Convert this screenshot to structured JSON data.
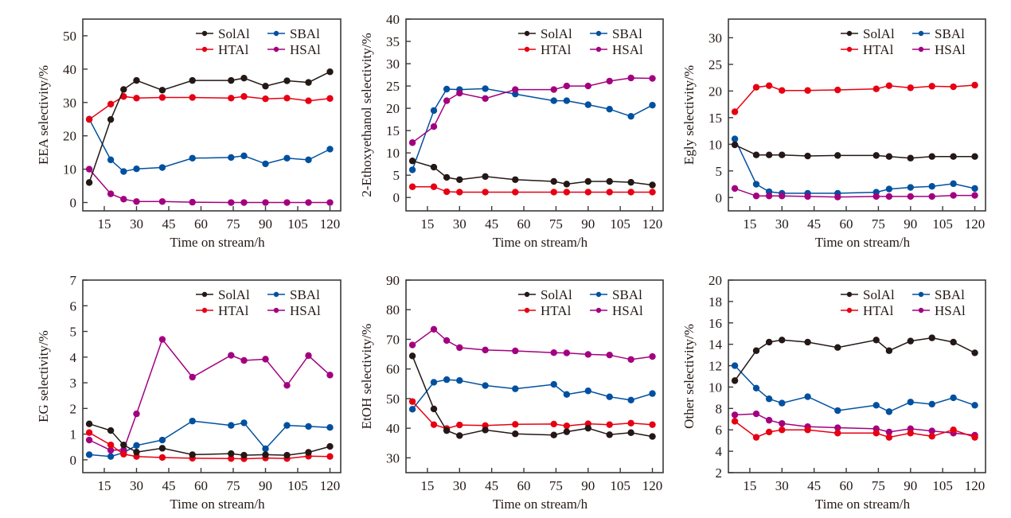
{
  "figure": {
    "legend_position": "top-right",
    "series_style": {
      "SolAl": "#231815",
      "HTAl": "#e60012",
      "SBAl": "#0050a0",
      "HSAl": "#a3007f"
    }
  },
  "chart_data": [
    {
      "type": "line",
      "title": "",
      "xlabel": "Time on stream/h",
      "ylabel": "EEA selectivity/%",
      "xlim": [
        5,
        125
      ],
      "ylim": [
        -2.5,
        55
      ],
      "xticks": [
        15,
        30,
        45,
        60,
        75,
        90,
        105,
        120
      ],
      "yticks": [
        0,
        10,
        20,
        30,
        40,
        50
      ],
      "grid": false,
      "legend": [
        "SolAl",
        "SBAl",
        "HTAl",
        "HSAl"
      ],
      "x": [
        8,
        18,
        24,
        30,
        42,
        56,
        74,
        80,
        90,
        100,
        110,
        120
      ],
      "series": [
        {
          "name": "SolAl",
          "values": [
            6.0,
            24.9,
            33.9,
            36.6,
            33.7,
            36.6,
            36.6,
            37.3,
            34.9,
            36.5,
            36.0,
            39.2
          ]
        },
        {
          "name": "HTAl",
          "values": [
            24.9,
            29.5,
            31.8,
            31.3,
            31.5,
            31.5,
            31.3,
            31.8,
            31.1,
            31.3,
            30.5,
            31.2
          ]
        },
        {
          "name": "SBAl",
          "values": [
            25.0,
            12.8,
            9.3,
            10.1,
            10.5,
            13.3,
            13.5,
            14.0,
            11.6,
            13.3,
            12.8,
            16.0
          ]
        },
        {
          "name": "HSAl",
          "values": [
            10.0,
            2.6,
            1.0,
            0.3,
            0.3,
            0.1,
            0.0,
            0.0,
            0.0,
            0.0,
            0.0,
            0.0
          ]
        }
      ]
    },
    {
      "type": "line",
      "title": "",
      "xlabel": "Time on stream/h",
      "ylabel": "2-Ethoxyethanol selectivity/%",
      "xlim": [
        5,
        125
      ],
      "ylim": [
        -3,
        40
      ],
      "xticks": [
        15,
        30,
        45,
        60,
        75,
        90,
        105,
        120
      ],
      "yticks": [
        0,
        5,
        10,
        15,
        20,
        25,
        30,
        35,
        40
      ],
      "grid": false,
      "legend": [
        "SolAl",
        "SBAl",
        "HTAl",
        "HSAl"
      ],
      "x": [
        8,
        18,
        24,
        30,
        42,
        56,
        74,
        80,
        90,
        100,
        110,
        120
      ],
      "series": [
        {
          "name": "SolAl",
          "values": [
            8.2,
            6.8,
            4.5,
            4.0,
            4.7,
            4.0,
            3.6,
            3.0,
            3.6,
            3.6,
            3.4,
            2.8
          ]
        },
        {
          "name": "HTAl",
          "values": [
            2.4,
            2.4,
            1.3,
            1.2,
            1.2,
            1.2,
            1.2,
            1.2,
            1.2,
            1.2,
            1.2,
            1.2
          ]
        },
        {
          "name": "SBAl",
          "values": [
            6.2,
            19.5,
            24.3,
            24.2,
            24.4,
            23.2,
            21.7,
            21.7,
            20.8,
            19.8,
            18.2,
            20.7
          ]
        },
        {
          "name": "HSAl",
          "values": [
            12.3,
            15.9,
            21.7,
            23.4,
            22.2,
            24.2,
            24.2,
            25.0,
            25.0,
            26.1,
            26.8,
            26.7
          ]
        }
      ]
    },
    {
      "type": "line",
      "title": "",
      "xlabel": "Time on stream/h",
      "ylabel": "Egly selectivity/%",
      "xlim": [
        5,
        125
      ],
      "ylim": [
        -2.5,
        33.5
      ],
      "xticks": [
        15,
        30,
        45,
        60,
        75,
        90,
        105,
        120
      ],
      "yticks": [
        0,
        5,
        10,
        15,
        20,
        25,
        30
      ],
      "grid": false,
      "legend": [
        "SolAl",
        "SBAl",
        "HTAl",
        "HSAl"
      ],
      "x": [
        8,
        18,
        24,
        30,
        42,
        56,
        74,
        80,
        90,
        100,
        110,
        120
      ],
      "series": [
        {
          "name": "SolAl",
          "values": [
            9.9,
            8.0,
            8.0,
            8.0,
            7.8,
            7.9,
            7.9,
            7.7,
            7.4,
            7.7,
            7.7,
            7.7
          ]
        },
        {
          "name": "HTAl",
          "values": [
            16.1,
            20.7,
            21.0,
            20.1,
            20.1,
            20.2,
            20.4,
            21.0,
            20.6,
            20.9,
            20.8,
            21.1
          ]
        },
        {
          "name": "SBAl",
          "values": [
            11.0,
            2.5,
            1.1,
            0.8,
            0.8,
            0.8,
            1.0,
            1.6,
            1.9,
            2.1,
            2.6,
            1.7
          ]
        },
        {
          "name": "HSAl",
          "values": [
            1.7,
            0.3,
            0.3,
            0.3,
            0.2,
            0.1,
            0.2,
            0.2,
            0.2,
            0.2,
            0.4,
            0.4
          ]
        }
      ]
    },
    {
      "type": "line",
      "title": "",
      "xlabel": "Time on stream/h",
      "ylabel": "EG selectivity/%",
      "xlim": [
        5,
        125
      ],
      "ylim": [
        -0.5,
        7
      ],
      "xticks": [
        15,
        30,
        45,
        60,
        75,
        90,
        105,
        120
      ],
      "yticks": [
        0,
        1,
        2,
        3,
        4,
        5,
        6,
        7
      ],
      "grid": false,
      "legend": [
        "SolAl",
        "SBAl",
        "HTAl",
        "HSAl"
      ],
      "x": [
        8,
        18,
        24,
        30,
        42,
        56,
        74,
        80,
        90,
        100,
        110,
        120
      ],
      "series": [
        {
          "name": "SolAl",
          "values": [
            1.4,
            1.14,
            0.58,
            0.3,
            0.45,
            0.2,
            0.24,
            0.18,
            0.2,
            0.18,
            0.29,
            0.52
          ]
        },
        {
          "name": "HTAl",
          "values": [
            1.06,
            0.58,
            0.22,
            0.13,
            0.09,
            0.06,
            0.05,
            0.04,
            0.07,
            0.05,
            0.14,
            0.13
          ]
        },
        {
          "name": "SBAl",
          "values": [
            0.2,
            0.13,
            0.28,
            0.56,
            0.77,
            1.51,
            1.34,
            1.44,
            0.43,
            1.34,
            1.3,
            1.26
          ]
        },
        {
          "name": "HSAl",
          "values": [
            0.77,
            0.37,
            0.39,
            1.79,
            4.69,
            3.22,
            4.07,
            3.87,
            3.92,
            2.9,
            4.06,
            3.3
          ]
        }
      ]
    },
    {
      "type": "line",
      "title": "",
      "xlabel": "Time on stream/h",
      "ylabel": "EtOH selectivity/%",
      "xlim": [
        5,
        125
      ],
      "ylim": [
        25,
        90
      ],
      "xticks": [
        15,
        30,
        45,
        60,
        75,
        90,
        105,
        120
      ],
      "yticks": [
        30,
        40,
        50,
        60,
        70,
        80,
        90
      ],
      "grid": false,
      "legend": [
        "SolAl",
        "SBAl",
        "HTAl",
        "HSAl"
      ],
      "x": [
        8,
        18,
        24,
        30,
        42,
        56,
        74,
        80,
        90,
        100,
        110,
        120
      ],
      "series": [
        {
          "name": "SolAl",
          "values": [
            64.4,
            46.5,
            39.2,
            37.5,
            39.4,
            38.1,
            37.7,
            38.8,
            40.0,
            37.8,
            38.5,
            37.2
          ]
        },
        {
          "name": "HTAl",
          "values": [
            49.0,
            41.2,
            39.9,
            41.1,
            40.9,
            41.3,
            41.4,
            40.8,
            41.5,
            41.2,
            41.7,
            41.2
          ]
        },
        {
          "name": "SBAl",
          "values": [
            46.4,
            55.5,
            56.4,
            56.1,
            54.4,
            53.3,
            54.8,
            51.4,
            52.6,
            50.6,
            49.5,
            51.7
          ]
        },
        {
          "name": "HSAl",
          "values": [
            68.1,
            73.4,
            69.6,
            67.2,
            66.4,
            66.1,
            65.5,
            65.4,
            64.9,
            64.7,
            63.2,
            64.2
          ]
        }
      ]
    },
    {
      "type": "line",
      "title": "",
      "xlabel": "Time on stream/h",
      "ylabel": "Other selectivity/%",
      "xlim": [
        5,
        125
      ],
      "ylim": [
        2,
        20
      ],
      "xticks": [
        15,
        30,
        45,
        60,
        75,
        90,
        105,
        120
      ],
      "yticks": [
        2,
        4,
        6,
        8,
        10,
        12,
        14,
        16,
        18,
        20
      ],
      "grid": false,
      "legend": [
        "SolAl",
        "SBAl",
        "HTAl",
        "HSAl"
      ],
      "x": [
        8,
        18,
        24,
        30,
        42,
        56,
        74,
        80,
        90,
        100,
        110,
        120
      ],
      "series": [
        {
          "name": "SolAl",
          "values": [
            10.6,
            13.4,
            14.2,
            14.4,
            14.2,
            13.7,
            14.4,
            13.4,
            14.3,
            14.6,
            14.2,
            13.2
          ]
        },
        {
          "name": "HTAl",
          "values": [
            6.8,
            5.3,
            5.8,
            6.0,
            6.0,
            5.7,
            5.7,
            5.3,
            5.7,
            5.4,
            6.0,
            5.3
          ]
        },
        {
          "name": "SBAl",
          "values": [
            12.0,
            9.9,
            8.9,
            8.5,
            9.1,
            7.8,
            8.3,
            7.7,
            8.6,
            8.4,
            9.0,
            8.3
          ]
        },
        {
          "name": "HSAl",
          "values": [
            7.4,
            7.5,
            6.9,
            6.6,
            6.3,
            6.2,
            6.1,
            5.8,
            6.1,
            5.9,
            5.7,
            5.5
          ]
        }
      ]
    }
  ]
}
